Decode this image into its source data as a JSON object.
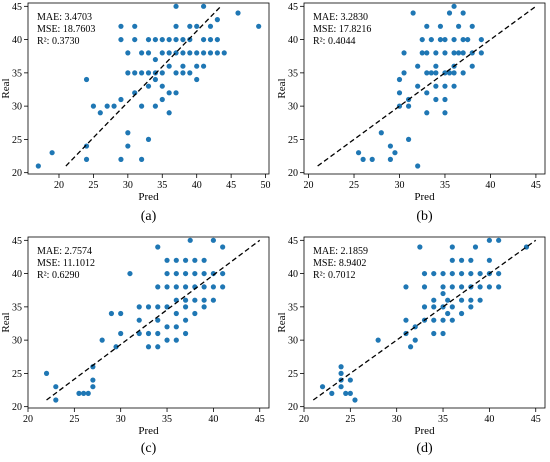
{
  "chart_data": [
    {
      "type": "scatter",
      "caption": "(a)",
      "xlabel": "Pred",
      "ylabel": "Real",
      "xlim": [
        15.5,
        50.5
      ],
      "ylim": [
        19.8,
        45.5
      ],
      "xticks": [
        20,
        25,
        30,
        35,
        40,
        45,
        50
      ],
      "yticks": [
        20,
        25,
        30,
        35,
        40,
        45
      ],
      "stats": [
        "MAE: 3.4703",
        "MSE: 18.7603",
        "R²: 0.3730"
      ],
      "fit_line": [
        [
          21,
          21
        ],
        [
          43.5,
          45
        ]
      ],
      "points": [
        [
          17,
          21
        ],
        [
          19,
          23
        ],
        [
          24,
          22
        ],
        [
          24,
          24
        ],
        [
          24,
          34
        ],
        [
          25,
          30
        ],
        [
          26,
          29
        ],
        [
          27,
          30
        ],
        [
          28,
          30
        ],
        [
          29,
          22
        ],
        [
          29,
          31
        ],
        [
          29,
          40
        ],
        [
          29,
          42
        ],
        [
          30,
          35
        ],
        [
          30,
          26
        ],
        [
          30,
          24
        ],
        [
          30,
          38
        ],
        [
          31,
          35
        ],
        [
          31,
          32
        ],
        [
          31,
          40
        ],
        [
          31,
          42
        ],
        [
          32,
          35
        ],
        [
          32,
          22
        ],
        [
          32,
          30
        ],
        [
          32,
          38
        ],
        [
          33,
          35
        ],
        [
          33,
          33
        ],
        [
          33,
          25
        ],
        [
          33,
          40
        ],
        [
          33,
          38
        ],
        [
          34,
          35
        ],
        [
          34,
          34
        ],
        [
          34,
          30
        ],
        [
          34,
          37
        ],
        [
          34,
          40
        ],
        [
          35,
          35
        ],
        [
          35,
          33
        ],
        [
          35,
          31
        ],
        [
          35,
          38
        ],
        [
          35,
          40
        ],
        [
          36,
          38
        ],
        [
          36,
          36
        ],
        [
          36,
          40
        ],
        [
          36,
          32
        ],
        [
          36,
          29
        ],
        [
          37,
          38
        ],
        [
          37,
          35
        ],
        [
          37,
          42
        ],
        [
          37,
          45
        ],
        [
          37,
          40
        ],
        [
          37,
          32
        ],
        [
          38,
          35
        ],
        [
          38,
          40
        ],
        [
          38,
          38
        ],
        [
          38,
          36
        ],
        [
          39,
          35
        ],
        [
          39,
          42
        ],
        [
          39,
          38
        ],
        [
          39,
          40
        ],
        [
          40,
          38
        ],
        [
          40,
          36
        ],
        [
          40,
          42
        ],
        [
          40,
          34
        ],
        [
          41,
          38
        ],
        [
          41,
          40
        ],
        [
          41,
          36
        ],
        [
          41,
          45
        ],
        [
          42,
          42
        ],
        [
          42,
          38
        ],
        [
          42,
          40
        ],
        [
          43,
          40
        ],
        [
          43,
          38
        ],
        [
          43,
          43
        ],
        [
          44,
          38
        ],
        [
          46,
          44
        ],
        [
          49,
          42
        ]
      ]
    },
    {
      "type": "scatter",
      "caption": "(b)",
      "xlabel": "Pred",
      "ylabel": "Real",
      "xlim": [
        19.5,
        46
      ],
      "ylim": [
        19.8,
        45.5
      ],
      "xticks": [
        20,
        25,
        30,
        35,
        40,
        45
      ],
      "yticks": [
        20,
        25,
        30,
        35,
        40,
        45
      ],
      "stats": [
        "MAE: 3.2830",
        "MSE: 17.8216",
        "R²: 0.4044"
      ],
      "fit_line": [
        [
          21,
          21
        ],
        [
          45,
          45
        ]
      ],
      "points": [
        [
          25.5,
          23
        ],
        [
          26,
          22
        ],
        [
          27,
          22
        ],
        [
          28,
          26
        ],
        [
          29,
          24
        ],
        [
          29,
          22
        ],
        [
          29.5,
          23
        ],
        [
          30,
          34
        ],
        [
          30,
          32
        ],
        [
          30,
          30
        ],
        [
          30.5,
          35
        ],
        [
          30.5,
          38
        ],
        [
          31,
          30
        ],
        [
          31,
          25
        ],
        [
          31,
          31
        ],
        [
          31.5,
          44
        ],
        [
          32,
          33
        ],
        [
          32,
          21
        ],
        [
          32,
          36
        ],
        [
          32.5,
          38
        ],
        [
          32.5,
          40
        ],
        [
          33,
          38
        ],
        [
          33,
          35
        ],
        [
          33,
          32
        ],
        [
          33,
          29
        ],
        [
          33,
          42
        ],
        [
          33.5,
          35
        ],
        [
          33.5,
          40
        ],
        [
          34,
          38
        ],
        [
          34,
          35
        ],
        [
          34,
          33
        ],
        [
          34,
          31
        ],
        [
          34,
          36
        ],
        [
          34.5,
          42
        ],
        [
          34.5,
          40
        ],
        [
          35,
          35
        ],
        [
          35,
          38
        ],
        [
          35,
          40
        ],
        [
          35,
          33
        ],
        [
          35,
          31
        ],
        [
          35,
          29
        ],
        [
          35.5,
          35
        ],
        [
          35.5,
          44
        ],
        [
          36,
          38
        ],
        [
          36,
          40
        ],
        [
          36,
          35
        ],
        [
          36,
          33
        ],
        [
          36,
          45
        ],
        [
          36,
          36
        ],
        [
          36.5,
          42
        ],
        [
          36.5,
          38
        ],
        [
          37,
          44
        ],
        [
          37,
          40
        ],
        [
          37,
          38
        ],
        [
          37,
          35
        ],
        [
          37.5,
          40
        ],
        [
          38,
          38
        ],
        [
          38,
          36
        ],
        [
          38,
          42
        ],
        [
          39,
          38
        ],
        [
          39,
          40
        ]
      ]
    },
    {
      "type": "scatter",
      "caption": "(c)",
      "xlabel": "Pred",
      "ylabel": "Real",
      "xlim": [
        20,
        46
      ],
      "ylim": [
        19.8,
        45.5
      ],
      "xticks": [
        20,
        25,
        30,
        35,
        40,
        45
      ],
      "yticks": [
        20,
        25,
        30,
        35,
        40,
        45
      ],
      "stats": [
        "MAE: 2.7574",
        "MSE: 11.1012",
        "R²: 0.6290"
      ],
      "fit_line": [
        [
          22,
          21
        ],
        [
          45,
          45
        ]
      ],
      "points": [
        [
          22,
          25
        ],
        [
          23,
          21
        ],
        [
          23,
          23
        ],
        [
          25.5,
          22
        ],
        [
          26,
          22
        ],
        [
          26.5,
          22
        ],
        [
          27,
          24
        ],
        [
          27,
          26
        ],
        [
          27,
          23
        ],
        [
          28,
          30
        ],
        [
          29,
          34
        ],
        [
          29.5,
          29
        ],
        [
          30,
          34
        ],
        [
          30,
          31
        ],
        [
          31,
          40
        ],
        [
          32,
          33
        ],
        [
          32,
          31
        ],
        [
          32,
          35
        ],
        [
          33,
          35
        ],
        [
          33,
          31
        ],
        [
          33,
          29
        ],
        [
          34,
          38
        ],
        [
          34,
          35
        ],
        [
          34,
          33
        ],
        [
          34,
          31
        ],
        [
          34,
          29
        ],
        [
          34,
          44
        ],
        [
          35,
          38
        ],
        [
          35,
          40
        ],
        [
          35,
          35
        ],
        [
          35,
          32
        ],
        [
          35,
          30
        ],
        [
          35,
          42
        ],
        [
          36,
          38
        ],
        [
          36,
          36
        ],
        [
          36,
          40
        ],
        [
          36,
          34
        ],
        [
          36,
          32
        ],
        [
          36,
          30
        ],
        [
          36,
          42
        ],
        [
          37,
          38
        ],
        [
          37,
          40
        ],
        [
          37,
          35
        ],
        [
          37,
          33
        ],
        [
          37,
          31
        ],
        [
          37,
          36
        ],
        [
          37,
          42
        ],
        [
          37.5,
          45
        ],
        [
          38,
          38
        ],
        [
          38,
          40
        ],
        [
          38,
          36
        ],
        [
          38,
          42
        ],
        [
          38,
          34
        ],
        [
          39,
          38
        ],
        [
          39,
          40
        ],
        [
          39,
          36
        ],
        [
          39,
          35
        ],
        [
          39,
          42
        ],
        [
          40,
          38
        ],
        [
          40,
          40
        ],
        [
          40,
          45
        ],
        [
          40,
          36
        ],
        [
          41,
          40
        ],
        [
          41,
          38
        ],
        [
          41,
          44
        ]
      ]
    },
    {
      "type": "scatter",
      "caption": "(d)",
      "xlabel": "Pred",
      "ylabel": "Real",
      "xlim": [
        20,
        46
      ],
      "ylim": [
        19.8,
        45.5
      ],
      "xticks": [
        20,
        25,
        30,
        35,
        40,
        45
      ],
      "yticks": [
        20,
        25,
        30,
        35,
        40,
        45
      ],
      "stats": [
        "MAE: 2.1859",
        "MSE: 8.9402",
        "R²: 0.7012"
      ],
      "fit_line": [
        [
          21,
          21
        ],
        [
          45,
          45
        ]
      ],
      "points": [
        [
          22,
          23
        ],
        [
          23,
          22
        ],
        [
          24,
          25
        ],
        [
          24,
          24
        ],
        [
          24,
          26
        ],
        [
          24,
          23
        ],
        [
          24.5,
          22
        ],
        [
          25,
          22
        ],
        [
          25,
          24
        ],
        [
          25.5,
          21
        ],
        [
          28,
          30
        ],
        [
          31,
          31
        ],
        [
          31,
          33
        ],
        [
          31,
          38
        ],
        [
          31.5,
          29
        ],
        [
          32,
          32
        ],
        [
          32,
          30
        ],
        [
          32.5,
          44
        ],
        [
          33,
          33
        ],
        [
          33,
          35
        ],
        [
          33,
          38
        ],
        [
          33,
          40
        ],
        [
          34,
          35
        ],
        [
          34,
          33
        ],
        [
          34,
          36
        ],
        [
          34,
          31
        ],
        [
          34,
          40
        ],
        [
          35,
          35
        ],
        [
          35,
          33
        ],
        [
          35,
          38
        ],
        [
          35,
          37
        ],
        [
          35,
          40
        ],
        [
          35,
          31
        ],
        [
          35.5,
          36
        ],
        [
          35.5,
          34
        ],
        [
          36,
          35
        ],
        [
          36,
          40
        ],
        [
          36,
          38
        ],
        [
          36,
          42
        ],
        [
          36,
          33
        ],
        [
          36,
          44
        ],
        [
          37,
          40
        ],
        [
          37,
          38
        ],
        [
          37,
          36
        ],
        [
          37,
          34
        ],
        [
          37,
          42
        ],
        [
          38,
          38
        ],
        [
          38,
          40
        ],
        [
          38,
          36
        ],
        [
          38,
          35
        ],
        [
          38,
          42
        ],
        [
          38.5,
          44
        ],
        [
          39,
          38
        ],
        [
          39,
          40
        ],
        [
          39,
          36
        ],
        [
          40,
          40
        ],
        [
          40,
          38
        ],
        [
          40,
          42
        ],
        [
          40,
          45
        ],
        [
          41,
          40
        ],
        [
          41,
          38
        ],
        [
          41,
          45
        ],
        [
          44,
          44
        ]
      ]
    }
  ]
}
